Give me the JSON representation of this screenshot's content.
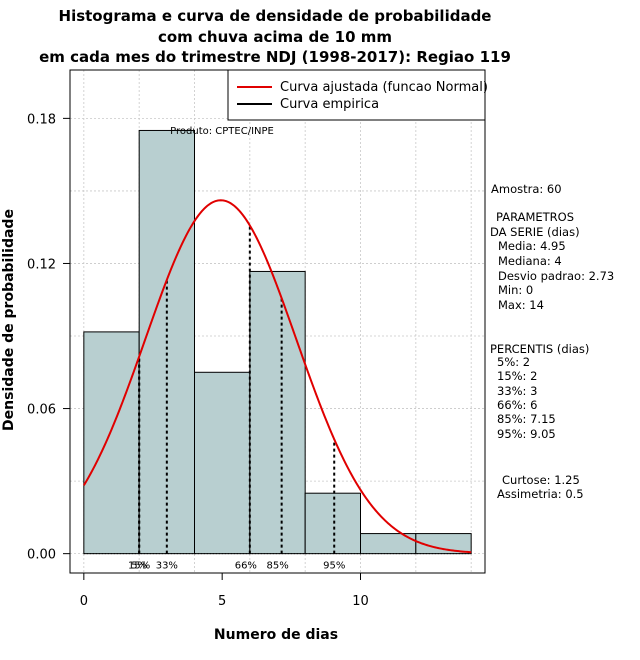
{
  "chart_data": {
    "type": "bar",
    "title_lines": [
      "Histograma e curva de densidade de probabilidade",
      "com chuva acima de 10 mm",
      "em cada mes do trimestre NDJ (1998-2017): Regiao 119"
    ],
    "xlabel": "Numero de dias",
    "ylabel": "Densidade de probabilidade",
    "xlim": [
      -0.5,
      14.5
    ],
    "ylim": [
      -0.008,
      0.2
    ],
    "x_ticks": [
      0,
      5,
      10
    ],
    "y_ticks": [
      0.0,
      0.06,
      0.12,
      0.18
    ],
    "y_tick_labels": [
      "0.00",
      "0.06",
      "0.12",
      "0.18"
    ],
    "grid_x": [
      0,
      2,
      4,
      6,
      8,
      10,
      12,
      14
    ],
    "grid_y": [
      0.0,
      0.03,
      0.06,
      0.09,
      0.12,
      0.15,
      0.18
    ],
    "bins": [
      {
        "x0": 0,
        "x1": 2,
        "density": 0.0917
      },
      {
        "x0": 2,
        "x1": 4,
        "density": 0.175
      },
      {
        "x0": 4,
        "x1": 6,
        "density": 0.075
      },
      {
        "x0": 6,
        "x1": 8,
        "density": 0.1167
      },
      {
        "x0": 8,
        "x1": 10,
        "density": 0.025
      },
      {
        "x0": 10,
        "x1": 12,
        "density": 0.0083
      },
      {
        "x0": 12,
        "x1": 14,
        "density": 0.0083
      }
    ],
    "normal_fit": {
      "mean": 4.95,
      "sd": 2.73,
      "color": "#e00000"
    },
    "percentile_lines": [
      {
        "label": "5%",
        "x": 2
      },
      {
        "label": "15%",
        "x": 2
      },
      {
        "label": "33%",
        "x": 3
      },
      {
        "label": "66%",
        "x": 6
      },
      {
        "label": "85%",
        "x": 7.15
      },
      {
        "label": "95%",
        "x": 9.05
      }
    ],
    "bar_color": "#b8cfd0",
    "legend": {
      "position": "top-right",
      "entries": [
        {
          "label": "Curva ajustada (funcao Normal)",
          "color": "#e00000"
        },
        {
          "label": "Curva empirica",
          "color": "#000000"
        }
      ]
    },
    "product_label": "Produto: CPTEC/INPE"
  },
  "stats": {
    "amostra": "Amostra: 60",
    "params_title_1": "PARAMETROS",
    "params_title_2": "DA SERIE (dias)",
    "media": "Media: 4.95",
    "mediana": "Mediana: 4",
    "desvio": "Desvio padrao: 2.73",
    "min": "Min: 0",
    "max": "Max: 14",
    "percentis_title": "PERCENTIS (dias)",
    "p5": "5%: 2",
    "p15": "15%: 2",
    "p33": "33%: 3",
    "p66": "66%: 6",
    "p85": "85%: 7.15",
    "p95": "95%: 9.05",
    "curtose": "Curtose: 1.25",
    "assimetria": "Assimetria: 0.5"
  }
}
